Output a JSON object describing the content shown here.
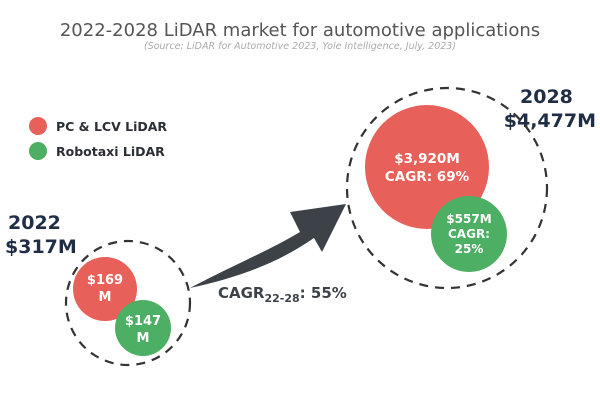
{
  "chart_data": {
    "type": "bubble",
    "title": "2022-2028 LiDAR market for automotive applications",
    "subtitle": "(Source: LiDAR for Automotive 2023, Yole Intelligence, July, 2023)",
    "legend": [
      {
        "name": "PC & LCV LiDAR",
        "color": "#e8605a"
      },
      {
        "name": "Robotaxi LiDAR",
        "color": "#4caf63"
      }
    ],
    "groups": [
      {
        "year": "2022",
        "total_label": "$317M",
        "total": 317,
        "bubbles": [
          {
            "series": "PC & LCV LiDAR",
            "value": 169,
            "label": "$169",
            "label2": "M"
          },
          {
            "series": "Robotaxi LiDAR",
            "value": 147,
            "label": "$147",
            "label2": "M"
          }
        ]
      },
      {
        "year": "2028",
        "total_label": "$4,477M",
        "total": 4477,
        "bubbles": [
          {
            "series": "PC & LCV LiDAR",
            "value": 3920,
            "label": "$3,920M",
            "label2": "CAGR: 69%"
          },
          {
            "series": "Robotaxi LiDAR",
            "value": 557,
            "label": "$557M",
            "label2": "CAGR:",
            "label3": "25%"
          }
        ]
      }
    ],
    "cagr": {
      "prefix": "CAGR",
      "sub": "22-28",
      "value": ": 55%"
    },
    "arrow_color": "#3d4248"
  }
}
